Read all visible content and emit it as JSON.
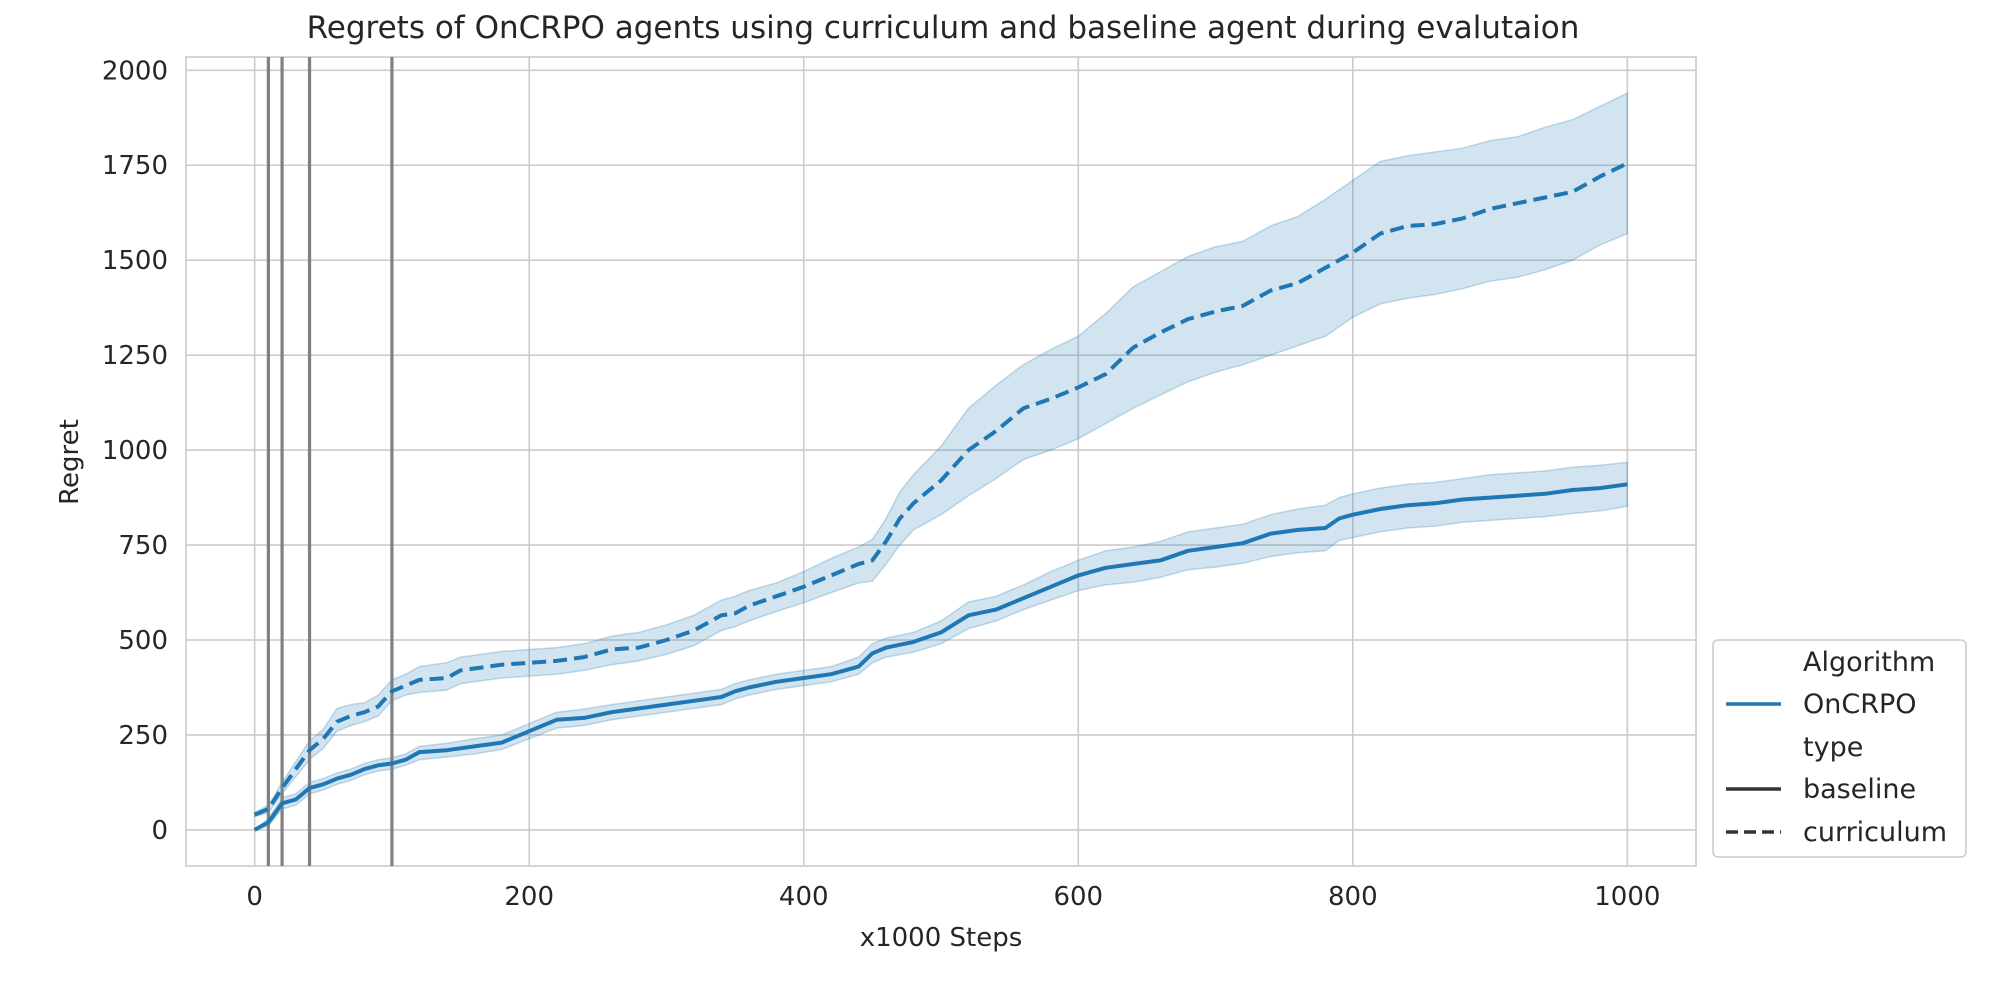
{
  "chart_data": {
    "type": "line",
    "title": "Regrets of OnCRPO agents using curriculum and baseline agent during evalutaion",
    "xlabel": "x1000 Steps",
    "ylabel": "Regret",
    "xlim": [
      -50,
      1050
    ],
    "ylim": [
      -95,
      2035
    ],
    "xticks": [
      0,
      200,
      400,
      600,
      800,
      1000
    ],
    "yticks": [
      0,
      250,
      500,
      750,
      1000,
      1250,
      1500,
      1750,
      2000
    ],
    "xtick_labels": [
      "0",
      "200",
      "400",
      "600",
      "800",
      "1000"
    ],
    "ytick_labels": [
      "0",
      "250",
      "500",
      "750",
      "1000",
      "1250",
      "1500",
      "1750",
      "2000"
    ],
    "grid": true,
    "legend_placement": "lower-right-outside",
    "legend": {
      "algorithm_header": "Algorithm",
      "algorithm_entry": "OnCRPO",
      "type_header": "type",
      "type_entries": [
        "baseline",
        "curriculum"
      ]
    },
    "vertical_lines_x": [
      10,
      20,
      40,
      100
    ],
    "colors": {
      "line": "#1f77b4",
      "band": "#1f77b4",
      "vline": "#808080",
      "grid": "#cccccc",
      "legend_line": "#333333"
    },
    "series": [
      {
        "type": "baseline",
        "x": [
          0,
          10,
          20,
          30,
          40,
          50,
          60,
          70,
          80,
          90,
          100,
          110,
          120,
          140,
          160,
          180,
          200,
          220,
          240,
          260,
          280,
          300,
          320,
          340,
          350,
          360,
          380,
          400,
          420,
          440,
          450,
          460,
          480,
          500,
          520,
          540,
          560,
          580,
          600,
          620,
          640,
          660,
          680,
          700,
          720,
          740,
          760,
          780,
          790,
          800,
          820,
          840,
          860,
          880,
          900,
          920,
          940,
          960,
          980,
          1000
        ],
        "y": [
          0,
          20,
          70,
          80,
          110,
          120,
          135,
          145,
          160,
          170,
          175,
          185,
          205,
          210,
          220,
          230,
          260,
          290,
          295,
          310,
          320,
          330,
          340,
          350,
          365,
          375,
          390,
          400,
          410,
          430,
          465,
          480,
          495,
          520,
          565,
          580,
          610,
          640,
          670,
          690,
          700,
          710,
          735,
          745,
          755,
          780,
          790,
          795,
          820,
          830,
          845,
          855,
          860,
          870,
          875,
          880,
          885,
          895,
          900,
          910
        ],
        "lower": [
          0,
          10,
          55,
          65,
          95,
          105,
          120,
          130,
          145,
          155,
          160,
          170,
          185,
          192,
          200,
          212,
          240,
          268,
          275,
          290,
          300,
          310,
          320,
          330,
          345,
          355,
          370,
          380,
          390,
          410,
          440,
          455,
          468,
          490,
          530,
          550,
          580,
          605,
          630,
          645,
          652,
          665,
          685,
          692,
          702,
          720,
          730,
          735,
          762,
          770,
          785,
          795,
          800,
          810,
          815,
          820,
          825,
          833,
          840,
          852
        ],
        "upper": [
          0,
          30,
          85,
          95,
          125,
          135,
          150,
          160,
          175,
          185,
          190,
          200,
          220,
          228,
          240,
          250,
          280,
          310,
          318,
          330,
          340,
          350,
          360,
          370,
          385,
          395,
          410,
          420,
          430,
          455,
          490,
          505,
          520,
          550,
          600,
          615,
          645,
          680,
          710,
          735,
          745,
          760,
          785,
          795,
          805,
          830,
          845,
          855,
          875,
          885,
          900,
          910,
          915,
          925,
          935,
          940,
          945,
          955,
          960,
          968
        ]
      },
      {
        "type": "curriculum",
        "x": [
          0,
          10,
          20,
          30,
          40,
          50,
          60,
          70,
          80,
          90,
          100,
          110,
          120,
          140,
          150,
          160,
          180,
          200,
          220,
          240,
          260,
          280,
          300,
          320,
          340,
          350,
          360,
          380,
          400,
          420,
          440,
          450,
          460,
          470,
          480,
          500,
          520,
          540,
          560,
          580,
          600,
          620,
          640,
          660,
          680,
          700,
          720,
          740,
          760,
          780,
          800,
          820,
          840,
          860,
          880,
          900,
          920,
          940,
          960,
          980,
          1000
        ],
        "y": [
          40,
          55,
          110,
          160,
          210,
          240,
          285,
          300,
          310,
          325,
          365,
          380,
          395,
          400,
          420,
          425,
          435,
          440,
          445,
          455,
          475,
          480,
          500,
          525,
          565,
          570,
          590,
          615,
          640,
          670,
          700,
          710,
          760,
          820,
          860,
          920,
          1000,
          1050,
          1110,
          1135,
          1165,
          1200,
          1270,
          1310,
          1345,
          1365,
          1380,
          1420,
          1440,
          1480,
          1520,
          1570,
          1590,
          1595,
          1610,
          1635,
          1650,
          1665,
          1680,
          1720,
          1755
        ],
        "lower": [
          35,
          45,
          95,
          140,
          185,
          215,
          260,
          275,
          285,
          300,
          340,
          355,
          362,
          368,
          385,
          390,
          400,
          405,
          410,
          420,
          435,
          445,
          462,
          485,
          525,
          535,
          550,
          575,
          598,
          625,
          650,
          655,
          700,
          750,
          790,
          830,
          880,
          925,
          975,
          1000,
          1030,
          1070,
          1110,
          1145,
          1180,
          1205,
          1225,
          1250,
          1275,
          1300,
          1350,
          1385,
          1400,
          1410,
          1425,
          1445,
          1455,
          1475,
          1500,
          1540,
          1570
        ],
        "upper": [
          45,
          65,
          125,
          180,
          235,
          265,
          320,
          330,
          335,
          355,
          395,
          410,
          430,
          440,
          455,
          460,
          470,
          475,
          480,
          490,
          510,
          520,
          540,
          565,
          605,
          615,
          630,
          650,
          680,
          715,
          745,
          765,
          820,
          890,
          935,
          1010,
          1110,
          1170,
          1225,
          1265,
          1300,
          1360,
          1430,
          1470,
          1510,
          1535,
          1550,
          1590,
          1615,
          1660,
          1710,
          1760,
          1775,
          1785,
          1795,
          1815,
          1825,
          1850,
          1870,
          1905,
          1940
        ]
      }
    ]
  }
}
